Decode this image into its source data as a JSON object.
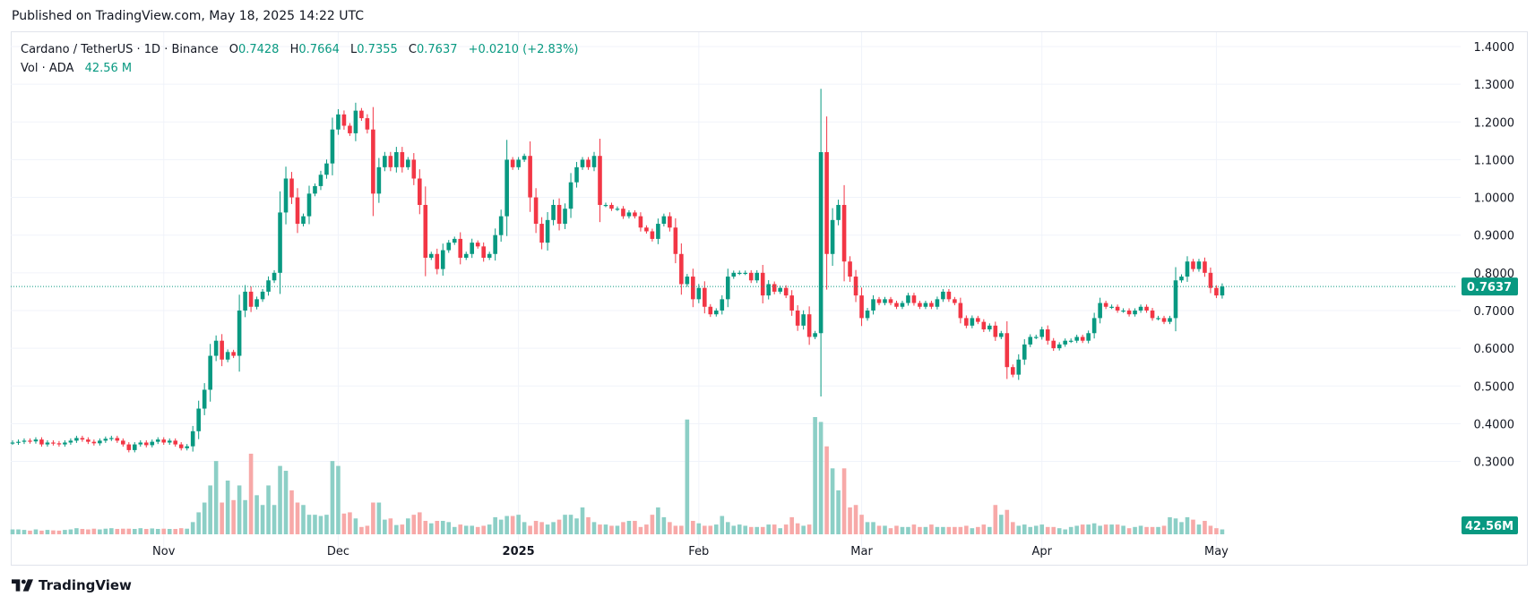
{
  "header": {
    "published": "Published on TradingView.com, May 18, 2025 14:22 UTC"
  },
  "legend": {
    "symbol": "Cardano / TetherUS · 1D · Binance",
    "open_label": "O",
    "open": "0.7428",
    "high_label": "H",
    "high": "0.7664",
    "low_label": "L",
    "low": "0.7355",
    "close_label": "C",
    "close": "0.7637",
    "change": "+0.0210 (+2.83%)",
    "vol_label": "Vol · ADA",
    "vol_value": "42.56 M"
  },
  "footer": {
    "brand": "TradingView"
  },
  "colors": {
    "up": "#089981",
    "down": "#f23645",
    "vol_up": "#8ccfc6",
    "vol_down": "#f7a9a8",
    "grid": "#f0f3fa"
  },
  "chart_data": {
    "type": "candlestick",
    "title": "Cardano / TetherUS · 1D · Binance",
    "y_unit": "USDT",
    "ylim": [
      0.24,
      1.44
    ],
    "y_ticks": [
      "1.4000",
      "1.3000",
      "1.2000",
      "1.1000",
      "1.0000",
      "0.9000",
      "0.8000",
      "0.7000",
      "0.6000",
      "0.5000",
      "0.4000",
      "0.3000"
    ],
    "x_ticks": [
      {
        "label": "Nov",
        "bar": 26,
        "bold": false
      },
      {
        "label": "Dec",
        "bar": 56,
        "bold": false
      },
      {
        "label": "2025",
        "bar": 87,
        "bold": true
      },
      {
        "label": "Feb",
        "bar": 118,
        "bold": false
      },
      {
        "label": "Mar",
        "bar": 146,
        "bold": false
      },
      {
        "label": "Apr",
        "bar": 177,
        "bold": false
      },
      {
        "label": "May",
        "bar": 207,
        "bold": false
      }
    ],
    "last_price": "0.7637",
    "last_volume": "42.56M",
    "grid": true,
    "closes": [
      0.35,
      0.352,
      0.355,
      0.353,
      0.358,
      0.345,
      0.35,
      0.348,
      0.345,
      0.35,
      0.355,
      0.362,
      0.358,
      0.352,
      0.348,
      0.355,
      0.36,
      0.362,
      0.355,
      0.345,
      0.33,
      0.345,
      0.35,
      0.343,
      0.352,
      0.358,
      0.35,
      0.355,
      0.345,
      0.335,
      0.34,
      0.38,
      0.44,
      0.49,
      0.58,
      0.62,
      0.57,
      0.59,
      0.58,
      0.7,
      0.75,
      0.71,
      0.73,
      0.75,
      0.78,
      0.8,
      0.96,
      1.05,
      1.0,
      0.93,
      0.95,
      1.01,
      1.03,
      1.06,
      1.09,
      1.18,
      1.22,
      1.19,
      1.17,
      1.23,
      1.21,
      1.18,
      1.01,
      1.08,
      1.11,
      1.08,
      1.12,
      1.08,
      1.1,
      1.05,
      0.98,
      0.84,
      0.85,
      0.81,
      0.86,
      0.88,
      0.89,
      0.84,
      0.85,
      0.88,
      0.87,
      0.84,
      0.85,
      0.9,
      0.95,
      1.1,
      1.08,
      1.1,
      1.11,
      1.0,
      0.93,
      0.88,
      0.94,
      0.98,
      0.93,
      0.97,
      1.04,
      1.08,
      1.1,
      1.08,
      1.11,
      0.98,
      0.98,
      0.97,
      0.97,
      0.95,
      0.96,
      0.95,
      0.92,
      0.91,
      0.89,
      0.93,
      0.95,
      0.92,
      0.85,
      0.77,
      0.79,
      0.73,
      0.76,
      0.71,
      0.69,
      0.7,
      0.73,
      0.79,
      0.8,
      0.8,
      0.8,
      0.78,
      0.8,
      0.74,
      0.77,
      0.75,
      0.76,
      0.74,
      0.7,
      0.66,
      0.69,
      0.63,
      0.64,
      1.12,
      0.85,
      0.94,
      0.98,
      0.83,
      0.79,
      0.74,
      0.68,
      0.7,
      0.73,
      0.72,
      0.73,
      0.72,
      0.71,
      0.72,
      0.74,
      0.72,
      0.71,
      0.72,
      0.71,
      0.73,
      0.75,
      0.73,
      0.72,
      0.68,
      0.66,
      0.68,
      0.67,
      0.65,
      0.66,
      0.63,
      0.64,
      0.55,
      0.53,
      0.57,
      0.61,
      0.63,
      0.63,
      0.65,
      0.62,
      0.6,
      0.61,
      0.62,
      0.62,
      0.63,
      0.62,
      0.64,
      0.68,
      0.72,
      0.71,
      0.71,
      0.7,
      0.7,
      0.69,
      0.7,
      0.71,
      0.7,
      0.68,
      0.68,
      0.67,
      0.68,
      0.78,
      0.79,
      0.83,
      0.81,
      0.83,
      0.8,
      0.76,
      0.74,
      0.7637
    ],
    "volumes": [
      2,
      2,
      1.8,
      1.5,
      2,
      1.5,
      1.8,
      1.6,
      1.5,
      1.8,
      2,
      2.5,
      2.2,
      2,
      2.3,
      2,
      2.3,
      2.5,
      2.2,
      2.3,
      2.3,
      2.2,
      2.5,
      2.2,
      2.4,
      2.2,
      2.3,
      2.2,
      2.2,
      2.5,
      2.3,
      5,
      9,
      13,
      20,
      30,
      13,
      22,
      14,
      20,
      14,
      33,
      16,
      12,
      20,
      12,
      28,
      26,
      18,
      13,
      12,
      8,
      8,
      7.5,
      8,
      30,
      28,
      8.5,
      9,
      6.5,
      3,
      3.5,
      13,
      13,
      6,
      6.5,
      3.8,
      4,
      6.5,
      8,
      9,
      5.5,
      4.5,
      5.5,
      5.5,
      5,
      3,
      4,
      3.5,
      3.5,
      3,
      3.5,
      4,
      7,
      6,
      7.5,
      7.5,
      8,
      5,
      3.5,
      5.5,
      5,
      4,
      5,
      6,
      8,
      8,
      6.5,
      11,
      7,
      5,
      4,
      4,
      3.5,
      3.5,
      5,
      5.5,
      5.5,
      3,
      4,
      8,
      11,
      7,
      5,
      3.5,
      3.5,
      47,
      5.5,
      4.5,
      3.5,
      3.5,
      4,
      7.5,
      5,
      3.5,
      4,
      3.5,
      3,
      3,
      3,
      4,
      4,
      2.5,
      4,
      7,
      4.5,
      3.5,
      4,
      48,
      46,
      36,
      27,
      18,
      27,
      11,
      12,
      8,
      5,
      5,
      3.5,
      3.5,
      2.5,
      3.5,
      3,
      3,
      4,
      3,
      3,
      4,
      3,
      3,
      3,
      3,
      3,
      3.5,
      2.5,
      3,
      4,
      3,
      12,
      8,
      10,
      5,
      3.5,
      4,
      3,
      3.5,
      4,
      3,
      3,
      2.5,
      2,
      3,
      3.5,
      4,
      4,
      4.5,
      3.5,
      4,
      4,
      4,
      3.5,
      2.5,
      3,
      3.5,
      3,
      3,
      3,
      3.5,
      7,
      6.5,
      5,
      7,
      6,
      4,
      5.5,
      3.5,
      2.5,
      2
    ]
  }
}
